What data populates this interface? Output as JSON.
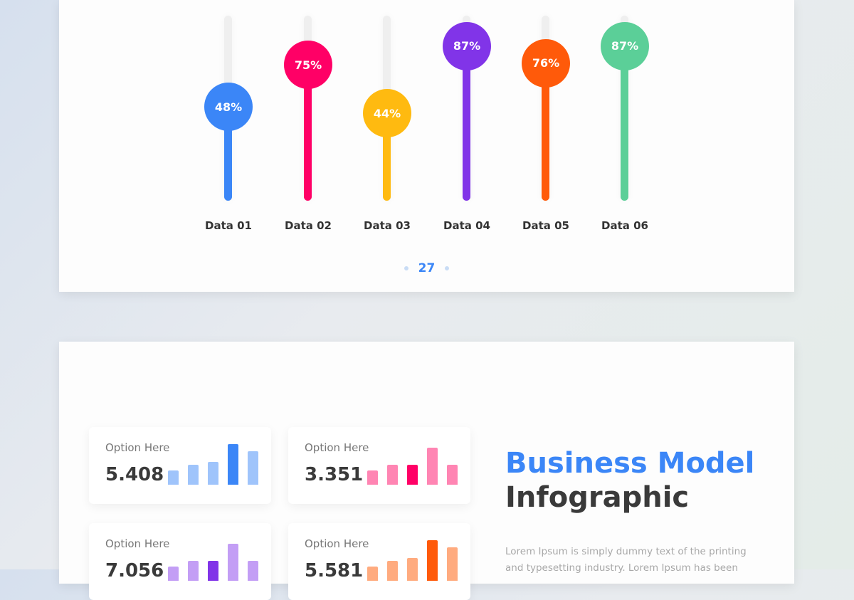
{
  "slide1": {
    "sliders": [
      {
        "label": "Data 01",
        "value": 48,
        "display": "48%",
        "color": "#3b86f7"
      },
      {
        "label": "Data 02",
        "value": 75,
        "display": "75%",
        "color": "#ff0066"
      },
      {
        "label": "Data 03",
        "value": 44,
        "display": "44%",
        "color": "#ffba10"
      },
      {
        "label": "Data 04",
        "value": 87,
        "display": "87%",
        "color": "#8134e8"
      },
      {
        "label": "Data 05",
        "value": 76,
        "display": "76%",
        "color": "#ff5a0a"
      },
      {
        "label": "Data 06",
        "value": 87,
        "display": "87%",
        "color": "#5bcf98"
      }
    ],
    "page_number": "27"
  },
  "slide2": {
    "title_line1": "Business Model",
    "title_line2": "Infographic",
    "body": "Lorem Ipsum is simply dummy text of the printing and typesetting industry. Lorem Ipsum has been",
    "cards": [
      {
        "label": "Option Here",
        "value": "5.408",
        "bars": [
          20,
          28,
          32,
          57,
          47
        ],
        "highlight": 3,
        "color": "#3b86f7",
        "light": "#9fc4fb"
      },
      {
        "label": "Option Here",
        "value": "3.351",
        "bars": [
          20,
          28,
          28,
          52,
          28
        ],
        "highlight": 2,
        "color": "#ff0066",
        "light": "#ff85b3"
      },
      {
        "label": "Option Here",
        "value": "7.056",
        "bars": [
          20,
          28,
          28,
          52,
          28
        ],
        "highlight": 2,
        "color": "#8134e8",
        "light": "#c39ef5"
      },
      {
        "label": "Option Here",
        "value": "5.581",
        "bars": [
          20,
          28,
          32,
          57,
          47
        ],
        "highlight": 3,
        "color": "#ff5a0a",
        "light": "#ffab7f"
      }
    ]
  }
}
